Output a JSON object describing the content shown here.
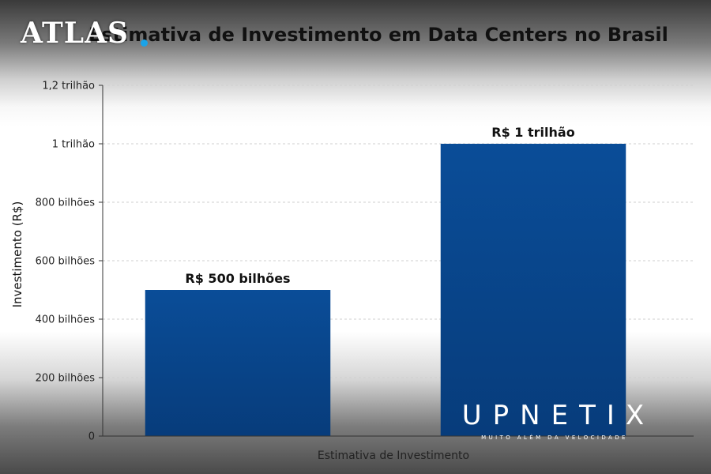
{
  "chart_data": {
    "type": "bar",
    "title": "Estimativa de Investimento em Data Centers no Brasil",
    "xlabel": "Estimativa de Investimento",
    "ylabel": "Investimento (R$)",
    "categories": [
      "",
      ""
    ],
    "values": [
      500,
      1000
    ],
    "value_unit": "bilhões de R$",
    "data_labels": [
      "R$ 500 bilhões",
      "R$ 1 trilhão"
    ],
    "ylim": [
      0,
      1200
    ],
    "yticks": [
      0,
      200,
      400,
      600,
      800,
      1000,
      1200
    ],
    "ytick_labels": [
      "0",
      "200 bilhões",
      "400 bilhões",
      "600 bilhões",
      "800 bilhões",
      "1 trilhão",
      "1,2 trilhão"
    ],
    "grid": "horizontal dashed",
    "colors": {
      "bar": "#0a4d98",
      "bar_dark": "#073c7b",
      "grid": "#cfcfcf"
    }
  },
  "logos": {
    "atlas": "ATLAS",
    "upnetix": "UPNETIX",
    "upnetix_tagline": "MUITO ALÉM DA VELOCIDADE"
  }
}
